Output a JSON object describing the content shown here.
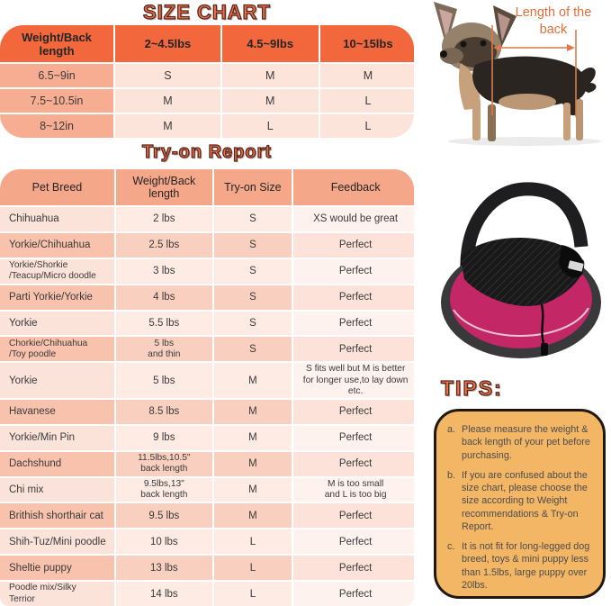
{
  "titles": {
    "size_chart": "SIZE CHART",
    "tryon_report": "Try-on Report"
  },
  "annotation": {
    "back_length_label": "Length of the back"
  },
  "size_chart": {
    "headers": [
      "Weight/Back length",
      "2~4.5lbs",
      "4.5~9lbs",
      "10~15lbs"
    ],
    "rows": [
      [
        "6.5~9in",
        "S",
        "M",
        "M"
      ],
      [
        "7.5~10.5in",
        "M",
        "M",
        "L"
      ],
      [
        "8~12in",
        "M",
        "L",
        "L"
      ]
    ]
  },
  "tryon_report": {
    "headers": [
      "Pet Breed",
      "Weight/Back length",
      "Try-on Size",
      "Feedback"
    ],
    "rows": [
      [
        "Chihuahua",
        "2 lbs",
        "S",
        "XS would be great"
      ],
      [
        "Yorkie/Chihuahua",
        "2.5 lbs",
        "S",
        "Perfect"
      ],
      [
        "Yorkie/Shorkie\n/Teacup/Micro doodle",
        "3 lbs",
        "S",
        "Perfect"
      ],
      [
        "Parti Yorkie/Yorkie",
        "4 lbs",
        "S",
        "Perfect"
      ],
      [
        "Yorkie",
        "5.5 lbs",
        "S",
        "Perfect"
      ],
      [
        "Chorkie/Chihuahua\n/Toy poodle",
        "5 lbs\nand thin",
        "S",
        "Perfect"
      ],
      [
        "Yorkie",
        "5 lbs",
        "M",
        "S fits well but M is better\nfor longer use,to lay down etc."
      ],
      [
        "Havanese",
        "8.5 lbs",
        "M",
        "Perfect"
      ],
      [
        "Yorkie/Min Pin",
        "9 lbs",
        "M",
        "Perfect"
      ],
      [
        "Dachshund",
        "11.5lbs,10.5\"\nback length",
        "M",
        "Perfect"
      ],
      [
        "Chi mix",
        "9.5lbs,13\"\nback length",
        "M",
        "M is too small\nand L is too big"
      ],
      [
        "Brithish shorthair cat",
        "9.5 lbs",
        "M",
        "Perfect"
      ],
      [
        "Shih-Tuz/Mini poodle",
        "10 lbs",
        "L",
        "Perfect"
      ],
      [
        "Sheltie puppy",
        "13 lbs",
        "L",
        "Perfect"
      ],
      [
        "Poodle mix/Silky\nTerrior",
        "14 lbs",
        "L",
        "Perfect"
      ]
    ]
  },
  "tips": {
    "title": "TIPS:",
    "items": [
      {
        "label": "a.",
        "text": "Please measure the weight & back length of your pet before purchasing."
      },
      {
        "label": "b.",
        "text": "If you are confused about the size chart, please choose the size according to Weight recommendations & Try-on Report."
      },
      {
        "label": "c.",
        "text": "It is not fit for long-legged dog breed, toys & mini puppy less than 1.5lbs, large puppy over 20lbs."
      }
    ]
  },
  "colors": {
    "accent_orange": "#f2683c",
    "header_salmon": "#f5a78a",
    "row_salmon": "#f8c2ad",
    "row_light": "#fbe3da",
    "tips_background": "#f3b664",
    "bag_pink": "#c32766",
    "annotation_orange": "#dd6f3a"
  }
}
